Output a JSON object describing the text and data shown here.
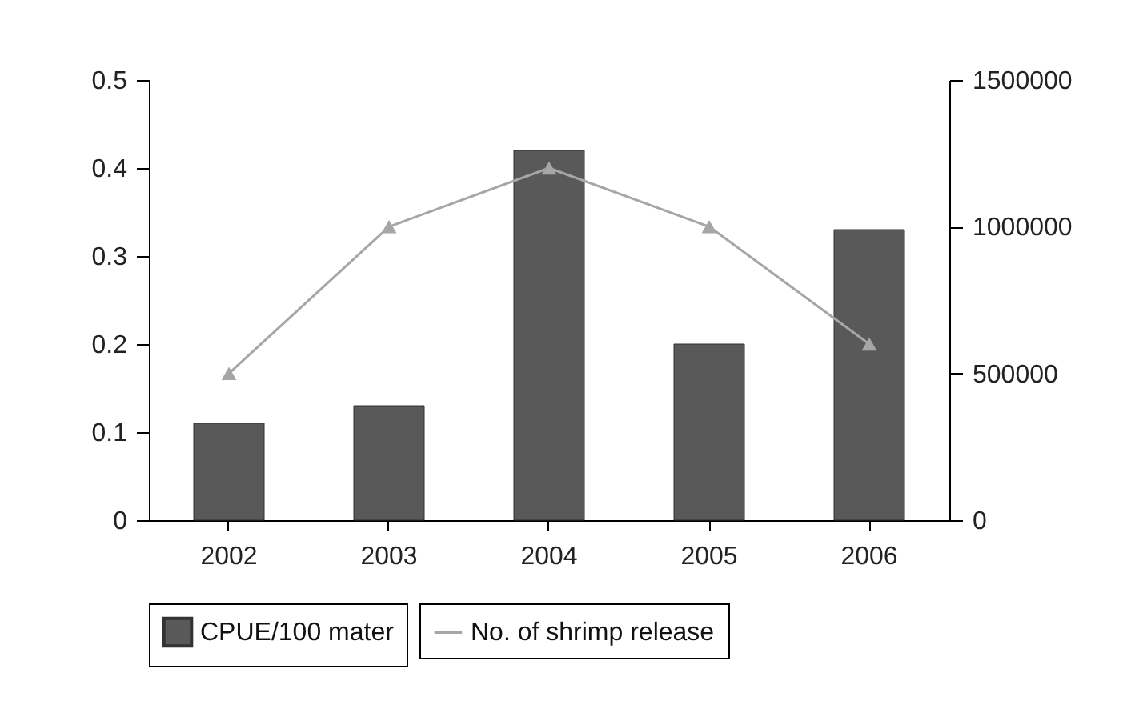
{
  "chart_data": {
    "type": "bar",
    "categories": [
      "2002",
      "2003",
      "2004",
      "2005",
      "2006"
    ],
    "series": [
      {
        "name": "CPUE/100 mater",
        "color": "#595959",
        "values": [
          0.11,
          0.13,
          0.42,
          0.2,
          0.33
        ]
      },
      {
        "name": "No. of shrimp release",
        "type": "line",
        "axis": "y2",
        "color": "#a6a6a6",
        "marker": "triangle",
        "values": [
          500000,
          1000000,
          1200000,
          1000000,
          600000
        ]
      }
    ],
    "ylim": [
      0,
      0.5
    ],
    "yticks": [
      0,
      0.1,
      0.2,
      0.3,
      0.4,
      0.5
    ],
    "y2lim": [
      0,
      1500000
    ],
    "y2ticks": [
      0,
      500000,
      1000000,
      1500000
    ],
    "grid": false,
    "legend": "bottom"
  }
}
